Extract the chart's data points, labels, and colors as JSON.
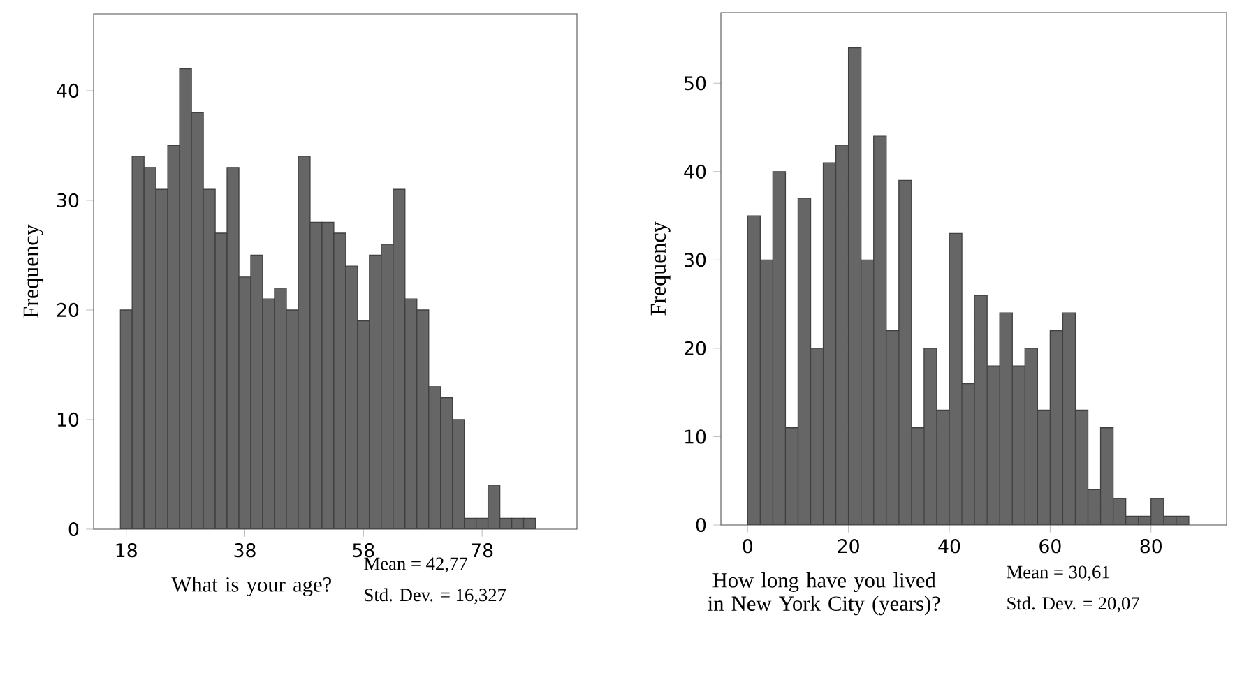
{
  "chart_data": [
    {
      "type": "histogram",
      "xlabel": "What is your age?",
      "ylabel": "Frequency",
      "color": "#666666",
      "bins": [
        17,
        19,
        21,
        23,
        25,
        27,
        29,
        31,
        33,
        35,
        37,
        39,
        41,
        43,
        45,
        47,
        49,
        51,
        53,
        55,
        57,
        59,
        61,
        63,
        65,
        67,
        69,
        71,
        73,
        75,
        77,
        79,
        81,
        83,
        85,
        87
      ],
      "values": [
        20,
        34,
        33,
        31,
        35,
        42,
        38,
        31,
        27,
        33,
        23,
        25,
        21,
        22,
        20,
        34,
        28,
        28,
        27,
        24,
        19,
        25,
        26,
        31,
        21,
        20,
        13,
        12,
        10,
        1,
        1,
        4,
        1,
        1,
        1
      ],
      "xlim": [
        12.5,
        94
      ],
      "ylim": [
        0,
        47
      ],
      "xticks": [
        18,
        38,
        58,
        78
      ],
      "yticks": [
        0,
        10,
        20,
        30,
        40
      ],
      "annotations": [
        "Mean = 42,77",
        "Std. Dev. = 16,327"
      ]
    },
    {
      "type": "histogram",
      "xlabel": "How long have you lived in New York City (years)?",
      "ylabel": "Frequency",
      "color": "#666666",
      "bins": [
        0,
        2.5,
        5,
        7.5,
        10,
        12.5,
        15,
        17.5,
        20,
        22.5,
        25,
        27.5,
        30,
        32.5,
        35,
        37.5,
        40,
        42.5,
        45,
        47.5,
        50,
        52.5,
        55,
        57.5,
        60,
        62.5,
        65,
        67.5,
        70,
        72.5,
        75,
        77.5,
        80,
        82.5,
        85,
        87.5
      ],
      "values": [
        35,
        30,
        40,
        11,
        37,
        20,
        41,
        43,
        54,
        30,
        44,
        22,
        39,
        11,
        20,
        13,
        33,
        16,
        26,
        18,
        24,
        18,
        20,
        13,
        22,
        24,
        13,
        4,
        11,
        3,
        1,
        1,
        3,
        1,
        1
      ],
      "xlim": [
        -5.3,
        95
      ],
      "ylim": [
        0,
        58
      ],
      "xticks": [
        0,
        20,
        40,
        60,
        80
      ],
      "yticks": [
        0,
        10,
        20,
        30,
        40,
        50
      ],
      "annotations": [
        "Mean = 30,61",
        "Std. Dev. = 20,07"
      ]
    }
  ]
}
